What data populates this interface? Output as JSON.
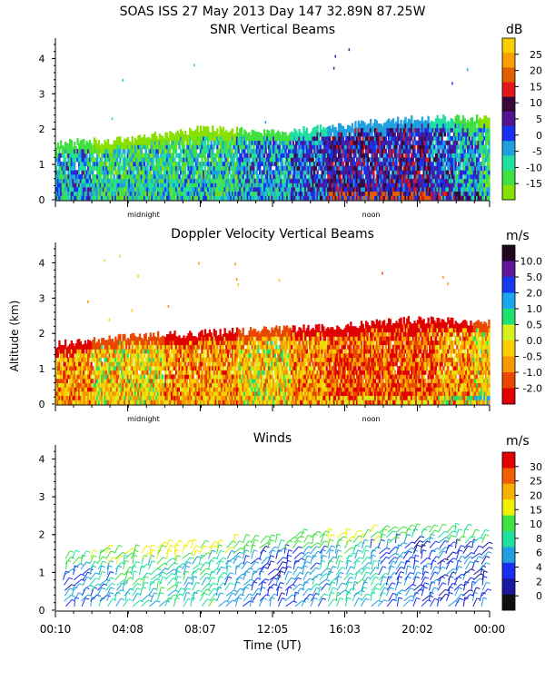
{
  "header": {
    "title": "SOAS ISS  27 May 2013 Day 147 32.89N  87.25W"
  },
  "axes": {
    "y_label": "Altitude (km)",
    "x_label": "Time (UT)",
    "y_ticks": [
      0,
      1,
      2,
      3,
      4
    ],
    "x_ticks": [
      "00:10",
      "04:08",
      "08:07",
      "12:05",
      "16:03",
      "20:02",
      "00:00"
    ],
    "x_markers": [
      "midnight",
      "noon"
    ]
  },
  "chart_data": [
    {
      "type": "heatmap",
      "title": "SNR Vertical Beams",
      "ylabel": "Altitude (km)",
      "ylim": [
        0,
        4.5
      ],
      "colorbar_unit": "dB",
      "colorbar_ticks": [
        25,
        20,
        15,
        10,
        5,
        0,
        -5,
        -10,
        -15
      ],
      "colorbar_colors": [
        "#f8d000",
        "#f8a000",
        "#e06000",
        "#e01818",
        "#380838",
        "#501890",
        "#1830f0",
        "#20a0e0",
        "#20e0a0",
        "#40e040",
        "#88e000"
      ],
      "samples": [
        {
          "time": "00:10",
          "top_km": 1.6,
          "dominant_db": -5
        },
        {
          "time": "04:08",
          "top_km": 1.7,
          "dominant_db": -10
        },
        {
          "time": "08:07",
          "top_km": 2.0,
          "dominant_db": -10
        },
        {
          "time": "12:05",
          "top_km": 1.9,
          "dominant_db": -5
        },
        {
          "time": "16:03",
          "top_km": 2.1,
          "dominant_db": 5
        },
        {
          "time": "20:02",
          "top_km": 2.3,
          "dominant_db": 5
        },
        {
          "time": "00:00",
          "top_km": 2.3,
          "dominant_db": -10
        }
      ]
    },
    {
      "type": "heatmap",
      "title": "Doppler Velocity Vertical Beams",
      "ylabel": "Altitude (km)",
      "ylim": [
        0,
        4.5
      ],
      "colorbar_unit": "m/s",
      "colorbar_ticks": [
        "10.0",
        "5.0",
        "2.0",
        "1.0",
        "0.5",
        "0.0",
        "-0.5",
        "-1.0",
        "-2.0"
      ],
      "colorbar_colors": [
        "#200820",
        "#601898",
        "#1838f0",
        "#18a8f0",
        "#20e070",
        "#d8f020",
        "#f8d000",
        "#f89800",
        "#e84800",
        "#e00000"
      ],
      "samples": [
        {
          "time": "00:10",
          "top_km": 1.7,
          "dominant_ms": -0.5
        },
        {
          "time": "04:08",
          "top_km": 1.9,
          "dominant_ms": 0.0
        },
        {
          "time": "08:07",
          "top_km": 2.0,
          "dominant_ms": -0.5
        },
        {
          "time": "12:05",
          "top_km": 2.1,
          "dominant_ms": 0.0
        },
        {
          "time": "16:03",
          "top_km": 2.2,
          "dominant_ms": -1.0
        },
        {
          "time": "20:02",
          "top_km": 2.4,
          "dominant_ms": -1.0
        },
        {
          "time": "00:00",
          "top_km": 2.3,
          "dominant_ms": 0.0
        }
      ]
    },
    {
      "type": "barbs",
      "title": "Winds",
      "ylabel": "Altitude (km)",
      "ylim": [
        0,
        4.3
      ],
      "colorbar_unit": "m/s",
      "colorbar_ticks": [
        30,
        25,
        20,
        15,
        10,
        8,
        6,
        4,
        2,
        0
      ],
      "colorbar_colors": [
        "#e00000",
        "#f06000",
        "#f8b000",
        "#f0f000",
        "#40e040",
        "#20e0a0",
        "#20a0e0",
        "#1830f0",
        "#1818a0",
        "#101010"
      ],
      "samples": [
        {
          "time": "00:10",
          "top_km": 1.4,
          "dominant_ms": 4
        },
        {
          "time": "04:08",
          "top_km": 1.6,
          "dominant_ms": 8
        },
        {
          "time": "08:07",
          "top_km": 1.7,
          "dominant_ms": 8
        },
        {
          "time": "12:05",
          "top_km": 1.9,
          "dominant_ms": 4
        },
        {
          "time": "16:03",
          "top_km": 2.0,
          "dominant_ms": 8
        },
        {
          "time": "20:02",
          "top_km": 2.2,
          "dominant_ms": 4
        },
        {
          "time": "00:00",
          "top_km": 2.0,
          "dominant_ms": 4
        }
      ]
    }
  ]
}
